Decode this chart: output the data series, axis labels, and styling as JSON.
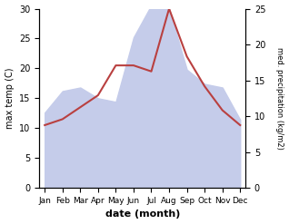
{
  "months": [
    "Jan",
    "Feb",
    "Mar",
    "Apr",
    "May",
    "Jun",
    "Jul",
    "Aug",
    "Sep",
    "Oct",
    "Nov",
    "Dec"
  ],
  "temp": [
    10.5,
    11.5,
    13.5,
    15.5,
    20.5,
    20.5,
    19.5,
    30.0,
    22.0,
    17.0,
    13.0,
    10.5
  ],
  "precip": [
    10.5,
    13.5,
    14.0,
    12.5,
    12.0,
    21.0,
    25.5,
    25.0,
    16.5,
    14.5,
    14.0,
    9.5
  ],
  "temp_color": "#b94040",
  "precip_fill_color": "#c5ccea",
  "temp_ylim": [
    0,
    30
  ],
  "precip_ylim": [
    0,
    25
  ],
  "xlabel": "date (month)",
  "ylabel_left": "max temp (C)",
  "ylabel_right": "med. precipitation (kg/m2)"
}
